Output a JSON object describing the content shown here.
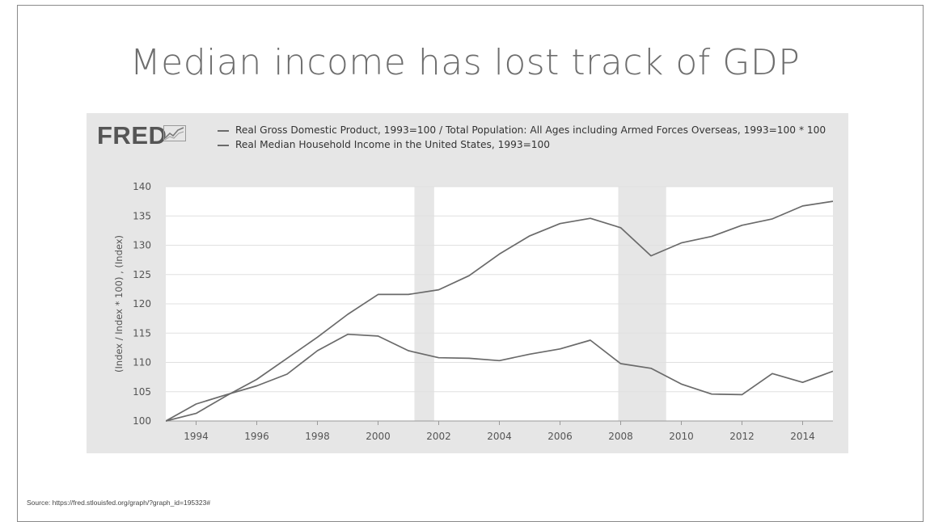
{
  "slide": {
    "title": "Median income has lost track of GDP",
    "source": "Source: https://fred.stlouisfed.org/graph/?graph_id=195323#"
  },
  "logo": {
    "text": "FRED",
    "icon": "fred-chart-icon"
  },
  "colors": {
    "panel_background": "#e6e6e6",
    "plot_background": "#ffffff",
    "series_line": "#6a6a6a",
    "recession_shade": "#e6e6e6",
    "grid": "#e0e0e0"
  },
  "chart_data": {
    "type": "line",
    "title": "",
    "xlabel": "",
    "ylabel": "(Index / Index * 100) , (Index)",
    "xlim": [
      1993,
      2015
    ],
    "ylim": [
      100,
      140
    ],
    "x_ticks": [
      1994,
      1996,
      1998,
      2000,
      2002,
      2004,
      2006,
      2008,
      2010,
      2012,
      2014
    ],
    "y_ticks": [
      100,
      105,
      110,
      115,
      120,
      125,
      130,
      135,
      140
    ],
    "grid": "horizontal",
    "legend_position": "top",
    "recession_shading": [
      {
        "start": 2001.2,
        "end": 2001.85
      },
      {
        "start": 2007.92,
        "end": 2009.5
      }
    ],
    "x": [
      1993,
      1994,
      1995,
      1996,
      1997,
      1998,
      1999,
      2000,
      2001,
      2002,
      2003,
      2004,
      2005,
      2006,
      2007,
      2008,
      2009,
      2010,
      2011,
      2012,
      2013,
      2014,
      2015
    ],
    "series": [
      {
        "name": "Real Gross Domestic Product, 1993=100 / Total Population: All Ages including Armed Forces Overseas, 1993=100 * 100",
        "values": [
          100,
          101.3,
          104.3,
          107.1,
          110.7,
          114.3,
          118.2,
          121.6,
          121.6,
          122.4,
          124.8,
          128.5,
          131.6,
          133.7,
          134.6,
          133.0,
          128.2,
          130.4,
          131.5,
          133.4,
          134.5,
          136.7,
          137.5
        ]
      },
      {
        "name": "Real Median Household Income in the United States, 1993=100",
        "values": [
          100,
          102.9,
          104.5,
          106.0,
          108.0,
          112.0,
          114.8,
          114.5,
          112.0,
          110.8,
          110.7,
          110.3,
          111.4,
          112.3,
          113.8,
          109.8,
          109.0,
          106.3,
          104.6,
          104.5,
          108.1,
          106.6,
          108.5
        ]
      }
    ]
  }
}
